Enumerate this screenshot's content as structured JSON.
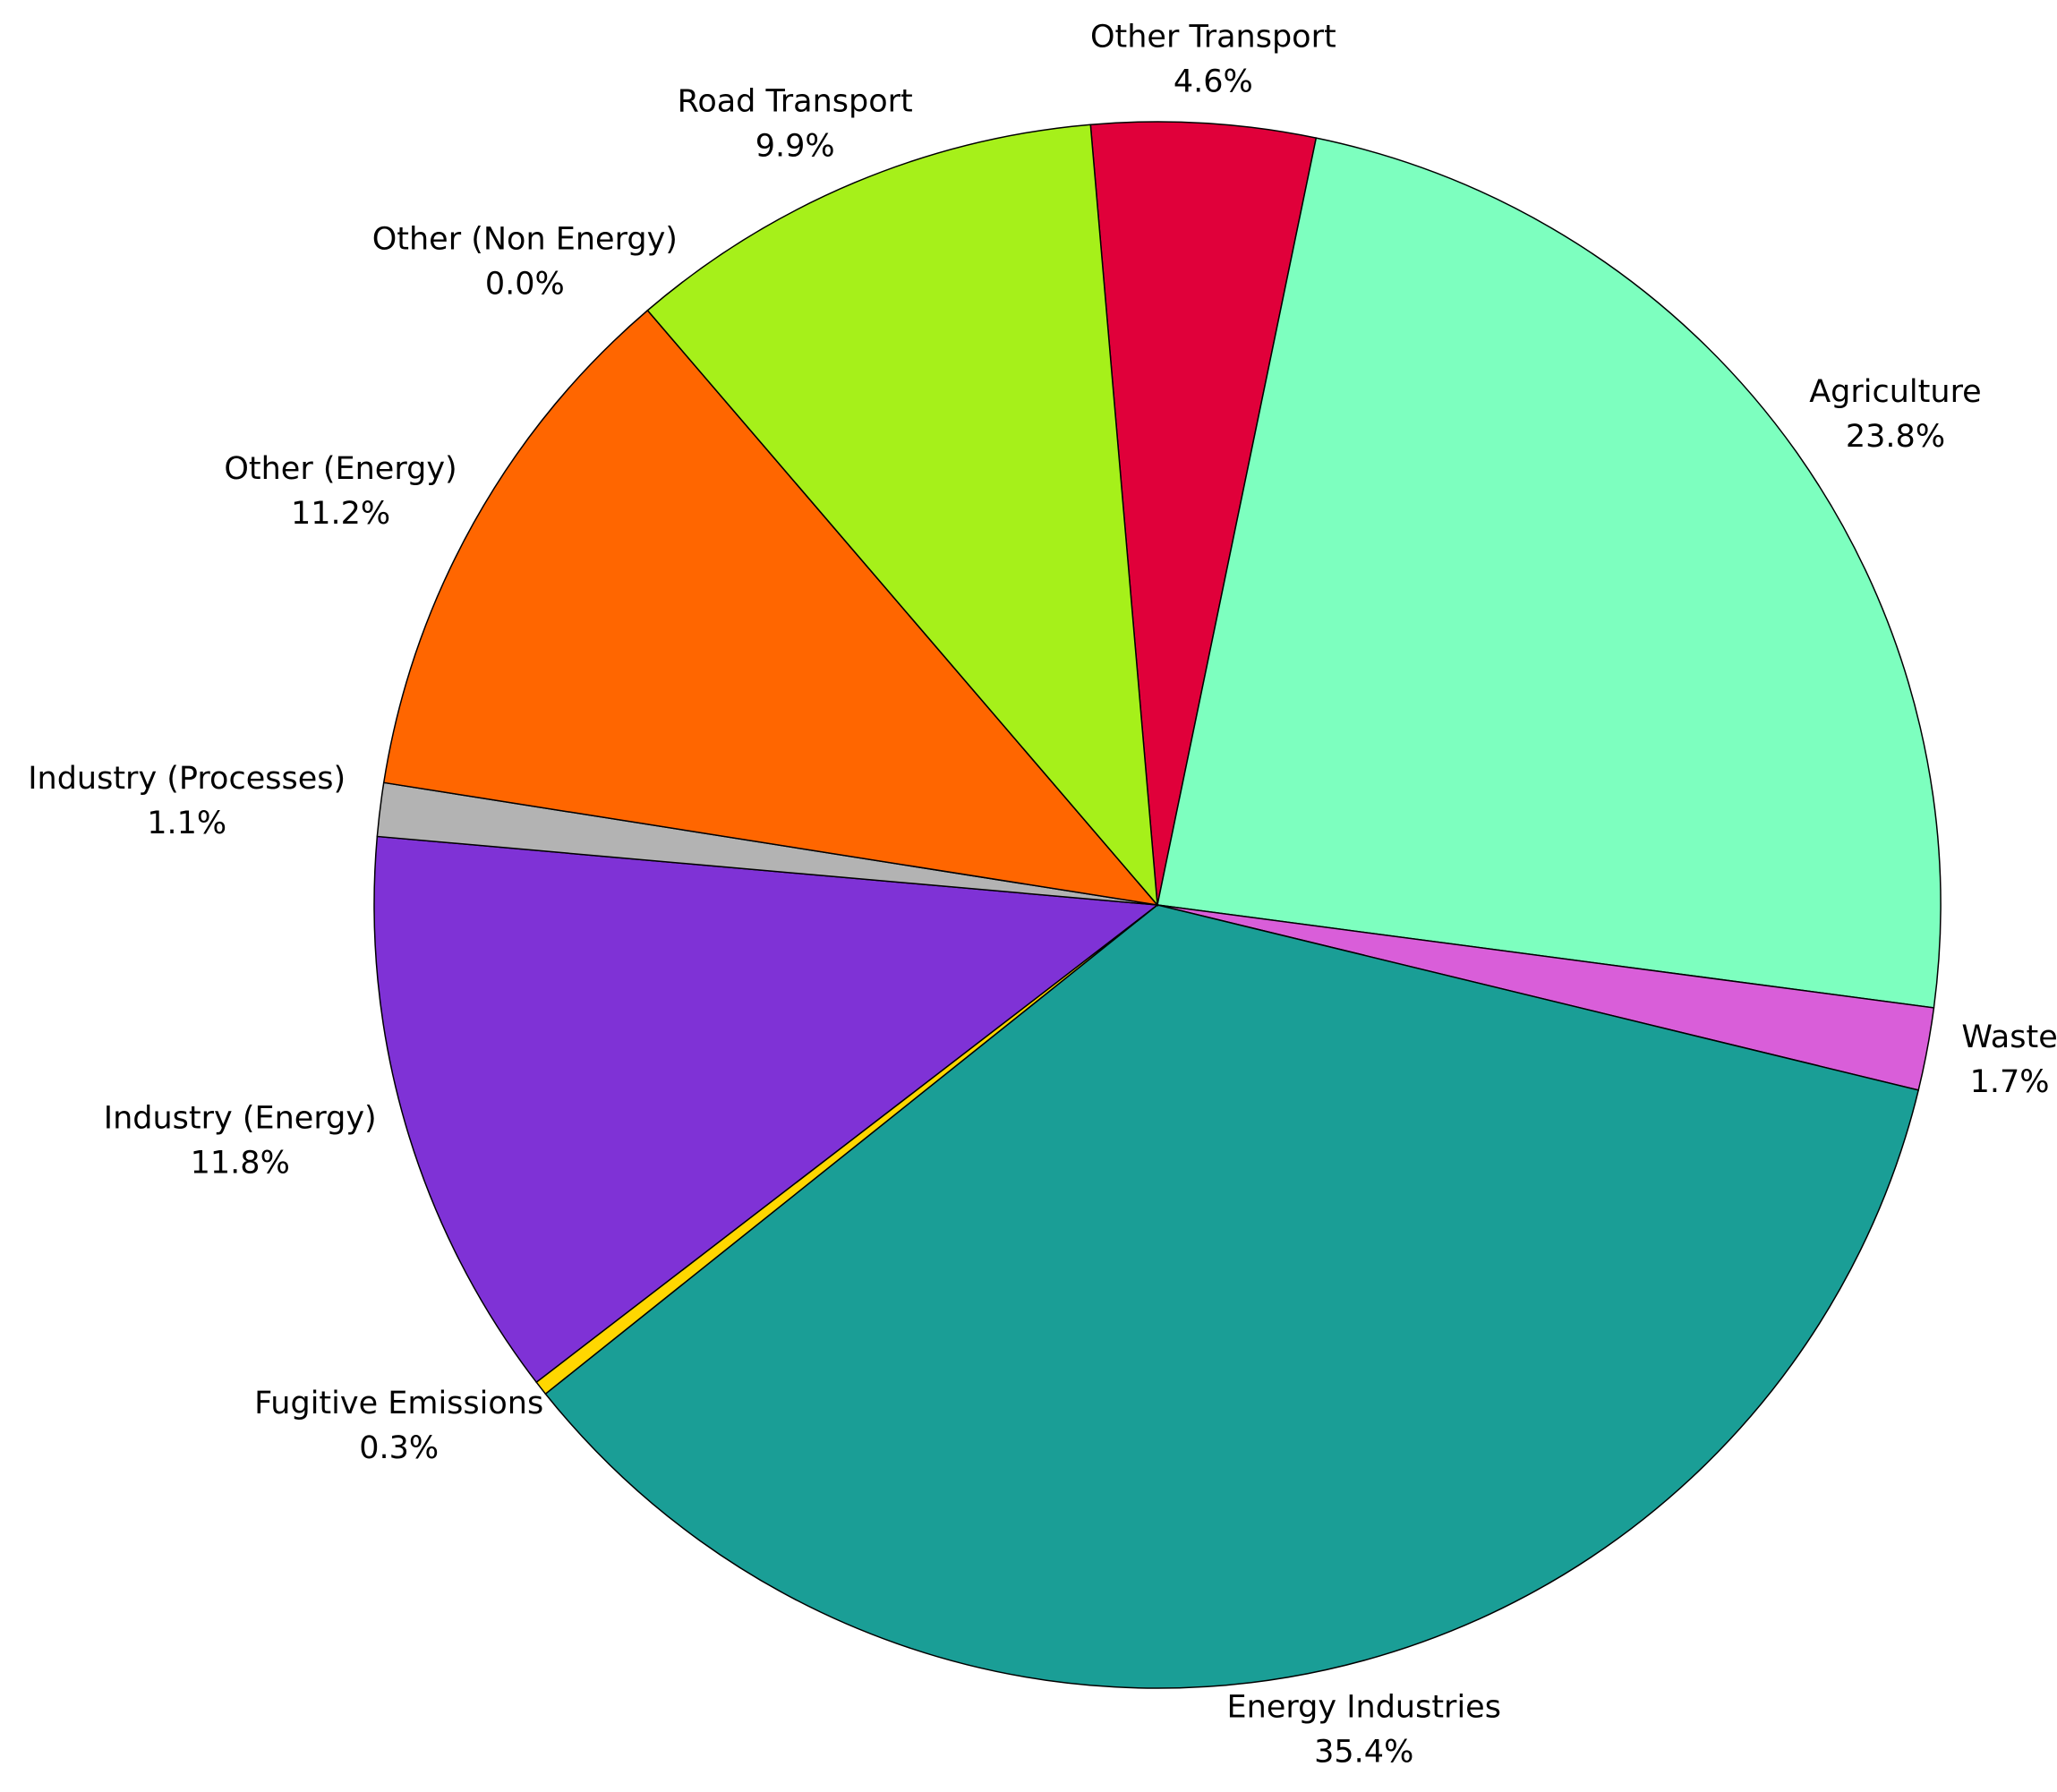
{
  "chart_data": {
    "type": "pie",
    "categories": [
      "Other Transport",
      "Agriculture",
      "Waste",
      "Energy Industries",
      "Fugitive Emissions",
      "Industry (Energy)",
      "Industry (Processes)",
      "Other (Energy)",
      "Other (Non Energy)",
      "Road Transport"
    ],
    "values": [
      4.6,
      23.8,
      1.7,
      35.4,
      0.3,
      11.8,
      1.1,
      11.2,
      0.0,
      9.9
    ],
    "value_labels": [
      "4.6%",
      "23.8%",
      "1.7%",
      "35.4%",
      "0.3%",
      "11.8%",
      "1.1%",
      "11.2%",
      "0.0%",
      "9.9%"
    ],
    "colors": [
      "#e0003a",
      "#7dffbf",
      "#d95ed9",
      "#1a9e96",
      "#ffd700",
      "#7f32d6",
      "#b3b3b3",
      "#ff6600",
      "#3355cc",
      "#a6f01a"
    ]
  }
}
